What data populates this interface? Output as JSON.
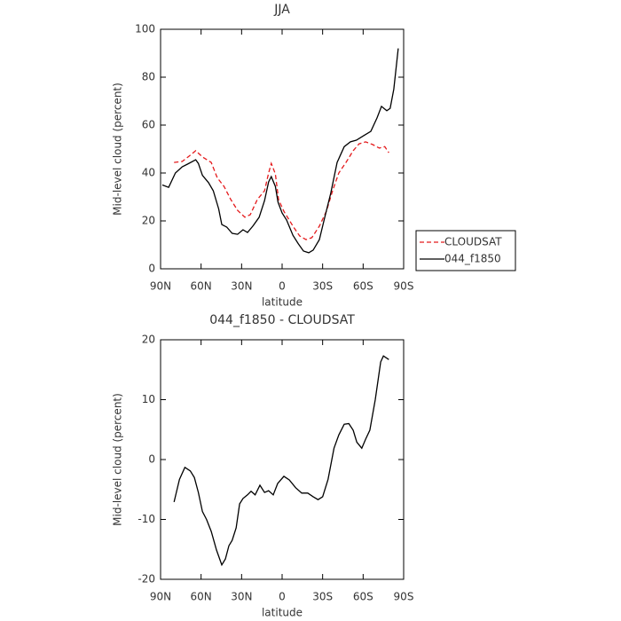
{
  "chart_data": [
    {
      "type": "line",
      "title": "JJA",
      "xlabel": "latitude",
      "ylabel": "Mid-level cloud (percent)",
      "xlim": [
        90,
        -90
      ],
      "xticks": [
        {
          "value": 90,
          "label": "90N"
        },
        {
          "value": 60,
          "label": "60N"
        },
        {
          "value": 30,
          "label": "30N"
        },
        0,
        {
          "value": -30,
          "label": "30S"
        },
        {
          "value": -60,
          "label": "60S"
        },
        {
          "value": -90,
          "label": "90S"
        }
      ],
      "ylim": [
        0,
        100
      ],
      "yticks": [
        0,
        20,
        40,
        60,
        80,
        100
      ],
      "legend": "right",
      "series": [
        {
          "name": "CLOUDSAT",
          "color": "#e41a1c",
          "dash": true,
          "x": [
            80,
            74,
            69,
            64,
            59,
            52.5,
            48,
            43,
            38,
            33,
            27.6,
            23.6,
            18.4,
            13,
            10,
            8,
            5,
            2.6,
            -1.3,
            -8,
            -13,
            -17.7,
            -22,
            -27.6,
            -32.8,
            -37.4,
            -42,
            -47.3,
            -52.6,
            -57,
            -61.8,
            -67,
            -72,
            -76,
            -79
          ],
          "values": [
            44.4,
            44.8,
            47,
            49.3,
            46.7,
            44.4,
            38,
            34.4,
            28.9,
            24.4,
            21.5,
            22.6,
            28.9,
            32.6,
            40,
            44,
            39.6,
            28.9,
            24,
            17.8,
            13.7,
            12.2,
            13,
            17.8,
            24,
            32.6,
            40,
            44.4,
            49.3,
            52.2,
            53,
            51.9,
            50.4,
            51,
            48.5
          ]
        },
        {
          "name": "044_f1850",
          "color": "#000000",
          "dash": false,
          "x": [
            88.7,
            84,
            79,
            74,
            70,
            64,
            62,
            59,
            54.5,
            51,
            47,
            44.7,
            41,
            37,
            33,
            29,
            25.6,
            21.7,
            17,
            13,
            10,
            8,
            5,
            3,
            0,
            -3.3,
            -8,
            -12,
            -15.8,
            -19.7,
            -23,
            -27.6,
            -31.6,
            -36,
            -40.7,
            -46,
            -50.6,
            -55,
            -60.4,
            -65.7,
            -70.3,
            -73.6,
            -77.5,
            -80,
            -82.7,
            -86
          ],
          "values": [
            35,
            34,
            40,
            42.6,
            43.7,
            45.5,
            44,
            39,
            36,
            32.6,
            25,
            18.5,
            17.4,
            14.8,
            14.4,
            16.3,
            15.2,
            17.8,
            21.5,
            28.5,
            36.3,
            38.5,
            34.4,
            27.8,
            23.3,
            20.4,
            14,
            10.4,
            7.4,
            6.7,
            7.8,
            12.2,
            21.5,
            31.5,
            44.4,
            51,
            53,
            53.7,
            55.6,
            57.4,
            63,
            67.8,
            66,
            67,
            75,
            92
          ]
        }
      ]
    },
    {
      "type": "line",
      "title": "044_f1850 - CLOUDSAT",
      "xlabel": "latitude",
      "ylabel": "Mid-level cloud (percent)",
      "xlim": [
        90,
        -90
      ],
      "xticks": [
        {
          "value": 90,
          "label": "90N"
        },
        {
          "value": 60,
          "label": "60N"
        },
        {
          "value": 30,
          "label": "30N"
        },
        0,
        {
          "value": -30,
          "label": "30S"
        },
        {
          "value": -60,
          "label": "60S"
        },
        {
          "value": -90,
          "label": "90S"
        }
      ],
      "ylim": [
        -20,
        20
      ],
      "yticks": [
        -20,
        -10,
        0,
        10,
        20
      ],
      "series": [
        {
          "color": "#000000",
          "dash": false,
          "x": [
            80,
            76,
            72,
            68,
            65,
            62,
            59,
            56,
            52.5,
            48.6,
            44.7,
            42,
            39.4,
            37,
            34,
            31.5,
            29,
            25.6,
            23,
            20,
            16.4,
            13,
            10,
            6.6,
            3.3,
            -1.3,
            -5.3,
            -10,
            -14.5,
            -19,
            -23,
            -26.6,
            -30,
            -34,
            -38.4,
            -42,
            -46,
            -49.4,
            -52.6,
            -55.3,
            -59,
            -61.8,
            -65,
            -69,
            -73,
            -75,
            -79
          ],
          "values": [
            -7.1,
            -3.3,
            -1.3,
            -1.9,
            -3,
            -5.5,
            -8.7,
            -10,
            -12,
            -15.1,
            -17.6,
            -16.6,
            -14.4,
            -13.5,
            -11.4,
            -7.4,
            -6.5,
            -5.9,
            -5.3,
            -5.9,
            -4.3,
            -5.5,
            -5.2,
            -5.9,
            -4,
            -2.8,
            -3.4,
            -4.7,
            -5.6,
            -5.6,
            -6.2,
            -6.7,
            -6.2,
            -3.3,
            1.9,
            4.1,
            5.9,
            6,
            4.9,
            2.9,
            1.9,
            3.4,
            4.9,
            10,
            16.3,
            17.3,
            16.7
          ]
        }
      ]
    }
  ]
}
